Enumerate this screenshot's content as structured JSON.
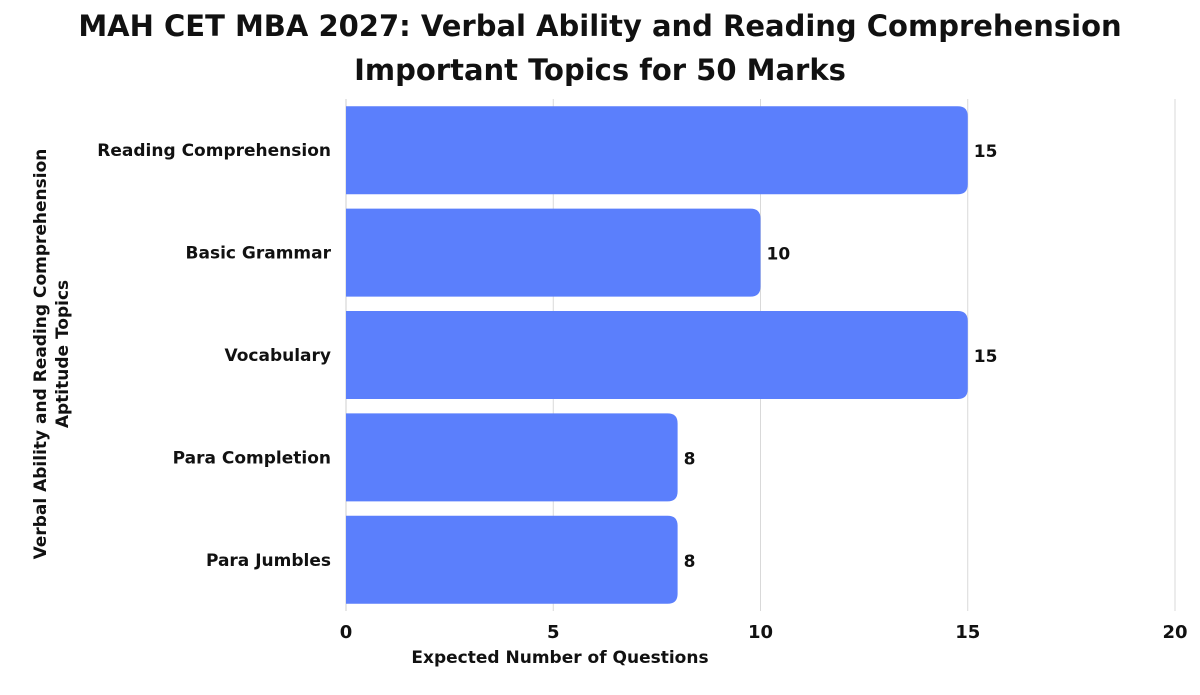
{
  "chart_data": {
    "type": "bar",
    "orientation": "horizontal",
    "title": "MAH CET MBA 2027: Verbal Ability and Reading Comprehension Important Topics for 50 Marks",
    "xlabel": "Expected Number of Questions",
    "ylabel": "Verbal Ability and Reading Comprehension Aptitude Topics",
    "categories": [
      "Reading Comprehension",
      "Basic Grammar",
      "Vocabulary",
      "Para Completion",
      "Para Jumbles"
    ],
    "values": [
      15,
      10,
      15,
      8,
      8
    ],
    "xlim": [
      0,
      20
    ],
    "xticks": [
      0,
      5,
      10,
      15,
      20
    ],
    "bar_color": "#5b7ffc",
    "grid": "vertical",
    "data_labels": true
  }
}
